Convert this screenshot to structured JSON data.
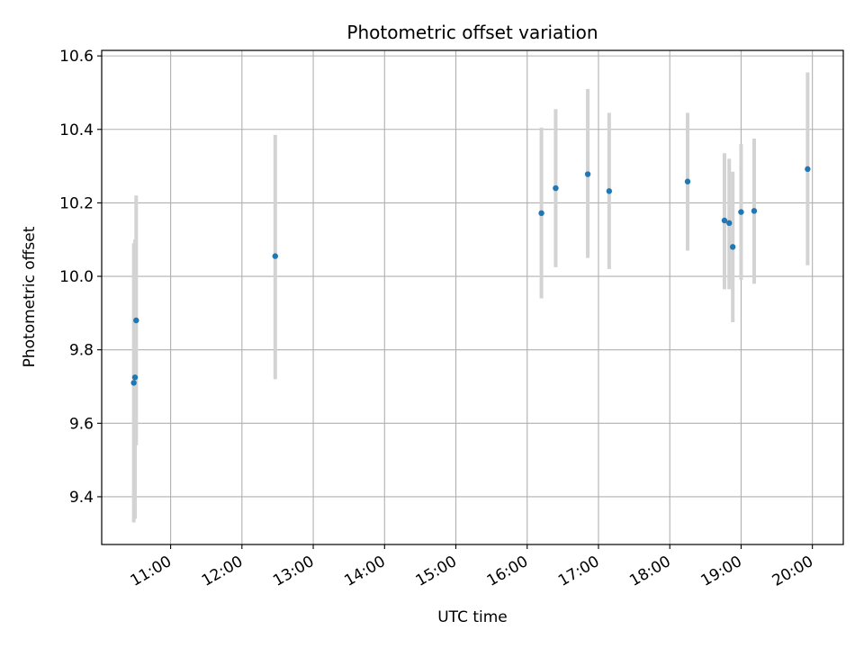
{
  "chart_data": {
    "type": "scatter",
    "title": "Photometric offset variation",
    "xlabel": "UTC time",
    "ylabel": "Photometric offset",
    "xlim": [
      "10:02",
      "20:26"
    ],
    "ylim": [
      9.27,
      10.615
    ],
    "x_ticks": [
      "11:00",
      "12:00",
      "13:00",
      "14:00",
      "15:00",
      "16:00",
      "17:00",
      "18:00",
      "19:00",
      "20:00"
    ],
    "y_ticks": [
      9.4,
      9.6,
      9.8,
      10.0,
      10.2,
      10.4,
      10.6
    ],
    "y_tick_labels": [
      "9.4",
      "9.6",
      "9.8",
      "10.0",
      "10.2",
      "10.4",
      "10.6"
    ],
    "grid": true,
    "colors": {
      "point": "#1f77b4",
      "errorbar": "#d3d3d3",
      "grid": "#b0b0b0"
    },
    "points": [
      {
        "x": "10:29",
        "y": 9.71,
        "ylo": 9.33,
        "yhi": 10.09
      },
      {
        "x": "10:30",
        "y": 9.725,
        "ylo": 9.34,
        "yhi": 10.1
      },
      {
        "x": "10:31",
        "y": 9.88,
        "ylo": 9.54,
        "yhi": 10.22
      },
      {
        "x": "12:28",
        "y": 10.055,
        "ylo": 9.72,
        "yhi": 10.385
      },
      {
        "x": "16:12",
        "y": 10.172,
        "ylo": 9.94,
        "yhi": 10.405
      },
      {
        "x": "16:24",
        "y": 10.24,
        "ylo": 10.025,
        "yhi": 10.455
      },
      {
        "x": "16:51",
        "y": 10.278,
        "ylo": 10.05,
        "yhi": 10.51
      },
      {
        "x": "17:09",
        "y": 10.232,
        "ylo": 10.02,
        "yhi": 10.445
      },
      {
        "x": "18:15",
        "y": 10.258,
        "ylo": 10.07,
        "yhi": 10.445
      },
      {
        "x": "18:46",
        "y": 10.152,
        "ylo": 9.965,
        "yhi": 10.335
      },
      {
        "x": "18:50",
        "y": 10.145,
        "ylo": 9.965,
        "yhi": 10.32
      },
      {
        "x": "18:53",
        "y": 10.08,
        "ylo": 9.875,
        "yhi": 10.285
      },
      {
        "x": "19:00",
        "y": 10.175,
        "ylo": 9.99,
        "yhi": 10.36
      },
      {
        "x": "19:11",
        "y": 10.178,
        "ylo": 9.98,
        "yhi": 10.375
      },
      {
        "x": "19:56",
        "y": 10.292,
        "ylo": 10.03,
        "yhi": 10.555
      }
    ]
  }
}
